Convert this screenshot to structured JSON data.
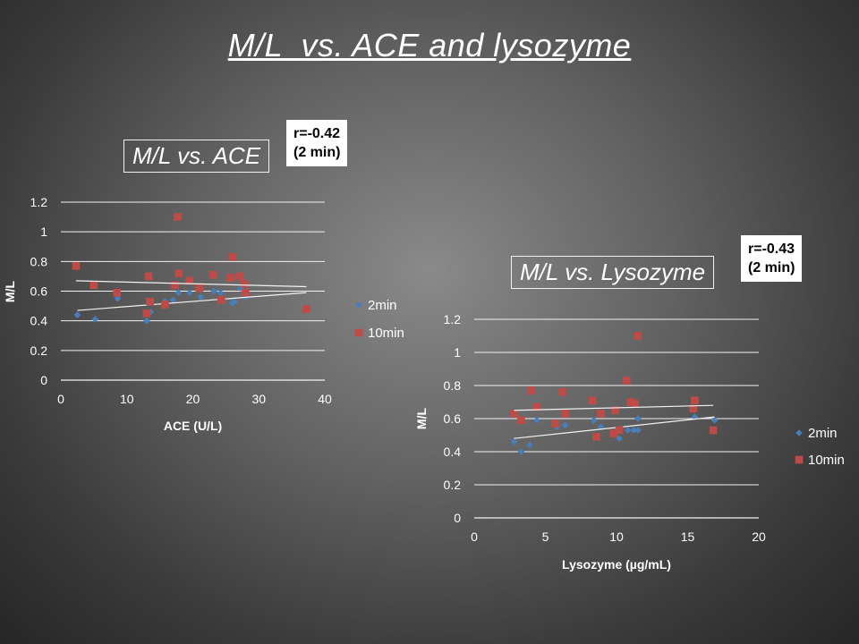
{
  "slide": {
    "title": "M/L  vs. ACE and lysozyme"
  },
  "colors": {
    "series_2min": "#4a7ebb",
    "series_10min": "#be4b48",
    "gridline": "#f2f2f2",
    "trendline": "#f2f2f2"
  },
  "chart_data": [
    {
      "type": "scatter",
      "title": "M/L vs. ACE",
      "annotation": [
        "r=-0.42",
        "(2 min)"
      ],
      "xlabel": "ACE (U/L)",
      "ylabel": "M/L",
      "xlim": [
        0,
        40
      ],
      "ylim": [
        0,
        1.2
      ],
      "xticks": [
        "0",
        "10",
        "20",
        "30",
        "40"
      ],
      "yticks": [
        "0",
        "0.2",
        "0.4",
        "0.6",
        "0.8",
        "1",
        "1.2"
      ],
      "legend": [
        "2min",
        "10min"
      ],
      "series": [
        {
          "name": "2min",
          "marker": "diamond",
          "points": [
            [
              2.5,
              0.44
            ],
            [
              5.2,
              0.41
            ],
            [
              8.6,
              0.55
            ],
            [
              13.0,
              0.4
            ],
            [
              13.6,
              0.46
            ],
            [
              15.8,
              0.53
            ],
            [
              17.0,
              0.54
            ],
            [
              17.8,
              0.59
            ],
            [
              19.5,
              0.59
            ],
            [
              21.2,
              0.56
            ],
            [
              23.2,
              0.6
            ],
            [
              24.2,
              0.59
            ],
            [
              26.0,
              0.52
            ],
            [
              26.3,
              0.53
            ],
            [
              27.2,
              0.62
            ],
            [
              28.0,
              0.56
            ]
          ],
          "trend": [
            [
              2.5,
              0.47
            ],
            [
              37.2,
              0.59
            ]
          ]
        },
        {
          "name": "10min",
          "marker": "square",
          "points": [
            [
              2.3,
              0.77
            ],
            [
              5.0,
              0.64
            ],
            [
              8.5,
              0.59
            ],
            [
              13.0,
              0.45
            ],
            [
              13.3,
              0.7
            ],
            [
              13.5,
              0.53
            ],
            [
              15.8,
              0.51
            ],
            [
              17.3,
              0.64
            ],
            [
              17.7,
              1.1
            ],
            [
              17.9,
              0.72
            ],
            [
              19.5,
              0.67
            ],
            [
              21.0,
              0.62
            ],
            [
              23.1,
              0.71
            ],
            [
              24.3,
              0.54
            ],
            [
              25.7,
              0.69
            ],
            [
              26.0,
              0.83
            ],
            [
              27.1,
              0.7
            ],
            [
              27.8,
              0.65
            ],
            [
              28.0,
              0.59
            ],
            [
              37.2,
              0.48
            ]
          ],
          "trend": [
            [
              2.3,
              0.67
            ],
            [
              37.2,
              0.63
            ]
          ]
        }
      ]
    },
    {
      "type": "scatter",
      "title": "M/L vs. Lysozyme",
      "annotation": [
        "r=-0.43",
        "(2 min)"
      ],
      "xlabel": "Lysozyme (µg/mL)",
      "ylabel": "M/L",
      "xlim": [
        0,
        20
      ],
      "ylim": [
        0,
        1.2
      ],
      "xticks": [
        "0",
        "5",
        "10",
        "15",
        "20"
      ],
      "yticks": [
        "0",
        "0.2",
        "0.4",
        "0.6",
        "0.8",
        "1",
        "1.2"
      ],
      "legend": [
        "2min",
        "10min"
      ],
      "series": [
        {
          "name": "2min",
          "marker": "diamond",
          "points": [
            [
              2.8,
              0.46
            ],
            [
              3.3,
              0.4
            ],
            [
              3.9,
              0.44
            ],
            [
              4.4,
              0.59
            ],
            [
              5.8,
              0.55
            ],
            [
              6.4,
              0.56
            ],
            [
              8.4,
              0.59
            ],
            [
              8.9,
              0.55
            ],
            [
              9.9,
              0.52
            ],
            [
              10.2,
              0.48
            ],
            [
              10.8,
              0.53
            ],
            [
              11.2,
              0.53
            ],
            [
              11.5,
              0.53
            ],
            [
              11.5,
              0.6
            ],
            [
              15.5,
              0.61
            ],
            [
              16.9,
              0.59
            ]
          ],
          "trend": [
            [
              2.8,
              0.48
            ],
            [
              16.9,
              0.61
            ]
          ]
        },
        {
          "name": "10min",
          "marker": "square",
          "points": [
            [
              2.8,
              0.63
            ],
            [
              3.3,
              0.59
            ],
            [
              4.0,
              0.77
            ],
            [
              4.4,
              0.67
            ],
            [
              5.7,
              0.57
            ],
            [
              6.2,
              0.76
            ],
            [
              6.4,
              0.63
            ],
            [
              8.3,
              0.71
            ],
            [
              8.6,
              0.49
            ],
            [
              8.9,
              0.63
            ],
            [
              9.8,
              0.51
            ],
            [
              9.9,
              0.65
            ],
            [
              10.2,
              0.53
            ],
            [
              10.7,
              0.83
            ],
            [
              11.0,
              0.7
            ],
            [
              11.3,
              0.69
            ],
            [
              11.5,
              1.1
            ],
            [
              15.4,
              0.66
            ],
            [
              15.5,
              0.71
            ],
            [
              16.8,
              0.53
            ]
          ],
          "trend": [
            [
              2.8,
              0.65
            ],
            [
              16.8,
              0.68
            ]
          ]
        }
      ]
    }
  ]
}
